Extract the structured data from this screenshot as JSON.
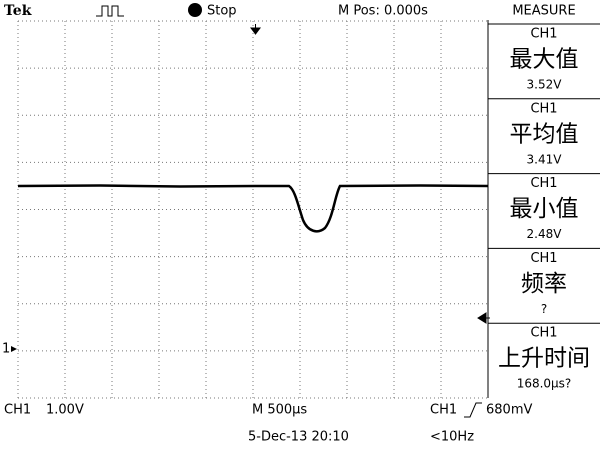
{
  "header": {
    "brand": "Tek",
    "status": "Stop",
    "position": "M Pos: 0.000s",
    "menu": "MEASURE"
  },
  "measurements": [
    {
      "channel": "CH1",
      "label": "最大值",
      "value": "3.52V"
    },
    {
      "channel": "CH1",
      "label": "平均值",
      "value": "3.41V"
    },
    {
      "channel": "CH1",
      "label": "最小值",
      "value": "2.48V"
    },
    {
      "channel": "CH1",
      "label": "频率",
      "value": "?"
    },
    {
      "channel": "CH1",
      "label": "上升时间",
      "value": "168.0µs?"
    }
  ],
  "footer": {
    "channel": "CH1",
    "scale": "1.00V",
    "timebase": "M 500µs",
    "trigger_source": "CH1",
    "trigger_level": "680mV",
    "date": "5-Dec-13 20:10",
    "frequency": "<10Hz"
  },
  "markers": {
    "ground": "1"
  }
}
